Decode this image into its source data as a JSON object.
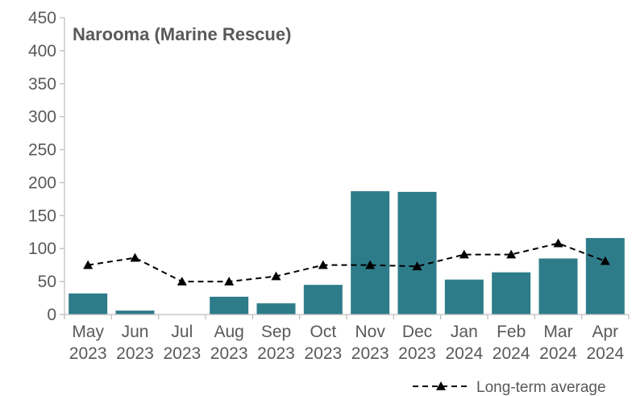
{
  "chart_data": {
    "type": "bar",
    "title": "Narooma (Marine Rescue)",
    "categories": [
      [
        "May",
        "2023"
      ],
      [
        "Jun",
        "2023"
      ],
      [
        "Jul",
        "2023"
      ],
      [
        "Aug",
        "2023"
      ],
      [
        "Sep",
        "2023"
      ],
      [
        "Oct",
        "2023"
      ],
      [
        "Nov",
        "2023"
      ],
      [
        "Dec",
        "2023"
      ],
      [
        "Jan",
        "2024"
      ],
      [
        "Feb",
        "2024"
      ],
      [
        "Mar",
        "2024"
      ],
      [
        "Apr",
        "2024"
      ]
    ],
    "series": [
      {
        "kind": "bar",
        "values": [
          32,
          6,
          0,
          27,
          17,
          45,
          187,
          186,
          53,
          64,
          85,
          116
        ]
      },
      {
        "name": "Long-term average",
        "kind": "line",
        "line_style": "dashed",
        "marker": "triangle",
        "values": [
          75,
          86,
          50,
          50,
          58,
          75,
          75,
          73,
          91,
          91,
          108,
          81
        ]
      }
    ],
    "ylim": [
      0,
      450
    ],
    "yticks": [
      0,
      50,
      100,
      150,
      200,
      250,
      300,
      350,
      400,
      450
    ],
    "grid": false,
    "legend_position": "bottom-right",
    "colors": {
      "bar": "#2E7C8A",
      "line": "#000000",
      "axis": "#BFBFBF",
      "text": "#595959"
    }
  }
}
